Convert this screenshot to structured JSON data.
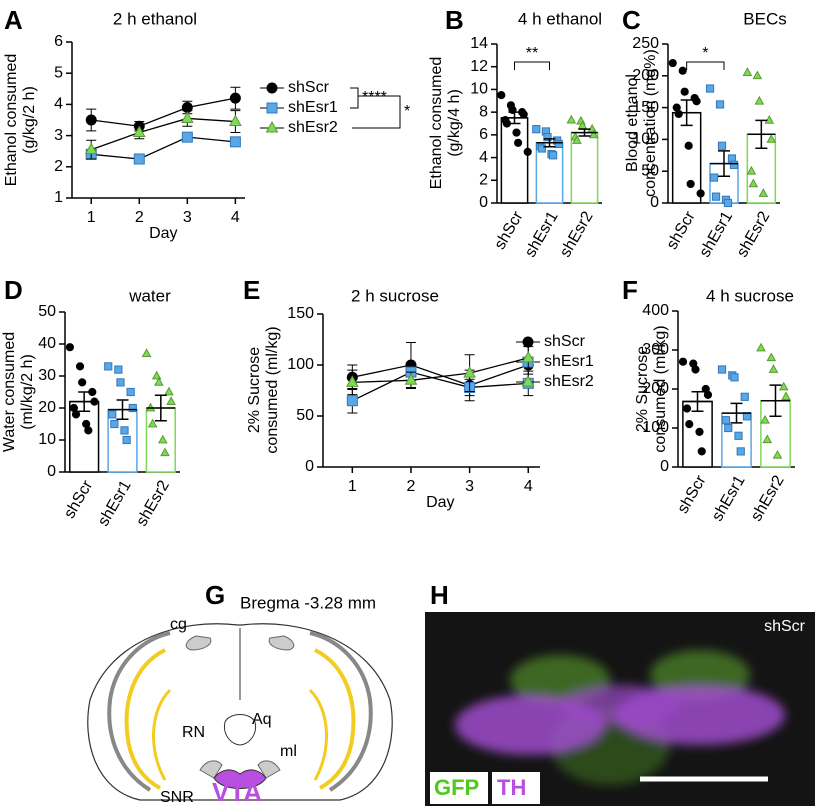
{
  "chart_data": [
    {
      "panel": "A",
      "type": "line",
      "title": "2 h ethanol",
      "ylabel": [
        "Ethanol consumed",
        "(g/kg/2 h)"
      ],
      "xlabel": "Day",
      "x": [
        1,
        2,
        3,
        4
      ],
      "xlim": [
        0.6,
        4.2
      ],
      "xticks": [
        1,
        2,
        3,
        4
      ],
      "ylim": [
        1,
        6
      ],
      "yticks": [
        1,
        2,
        3,
        4,
        5,
        6
      ],
      "series": [
        {
          "name": "shScr",
          "color": "#000000",
          "marker": "circle",
          "values": [
            3.5,
            3.3,
            3.9,
            4.2
          ],
          "errors": [
            0.35,
            0.15,
            0.2,
            0.35
          ]
        },
        {
          "name": "shEsr1",
          "color": "#5aa7e6",
          "marker": "square",
          "values": [
            2.4,
            2.25,
            2.95,
            2.8
          ],
          "errors": [
            0.15,
            0.1,
            0.15,
            0.1
          ]
        },
        {
          "name": "shEsr2",
          "color": "#7ed957",
          "marker": "triangle",
          "values": [
            2.55,
            3.1,
            3.55,
            3.45
          ],
          "errors": [
            0.3,
            0.2,
            0.25,
            0.35
          ]
        }
      ],
      "annotations": [
        "****",
        "*"
      ]
    },
    {
      "panel": "B",
      "type": "bar",
      "title": "4 h ethanol",
      "ylabel": [
        "Ethanol consumed",
        "(g/kg/4 h)"
      ],
      "categories": [
        "shScr",
        "shEsr1",
        "shEsr2"
      ],
      "colors": [
        "#000000",
        "#5aa7e6",
        "#7ed957"
      ],
      "markers": [
        "circle",
        "square",
        "triangle"
      ],
      "values": [
        7.5,
        5.3,
        6.2
      ],
      "errors": [
        0.5,
        0.35,
        0.3
      ],
      "points": [
        [
          9.5,
          8.6,
          8.2,
          8.0,
          7.8,
          7.3,
          7.0,
          6.2,
          5.3,
          4.5
        ],
        [
          6.5,
          6.3,
          5.8,
          5.5,
          5.2,
          5.0,
          4.8,
          4.3,
          4.2
        ],
        [
          7.3,
          7.2,
          6.8,
          6.5,
          6.0,
          5.8,
          5.5
        ]
      ],
      "ylim": [
        0,
        14
      ],
      "yticks": [
        0,
        2,
        4,
        6,
        8,
        10,
        12,
        14
      ],
      "annotations": [
        "**"
      ]
    },
    {
      "panel": "C",
      "type": "bar",
      "title": "BECs",
      "ylabel": [
        "Blood ethanol",
        "concentration (mg%)"
      ],
      "categories": [
        "shScr",
        "shEsr1",
        "shEsr2"
      ],
      "colors": [
        "#000000",
        "#5aa7e6",
        "#7ed957"
      ],
      "markers": [
        "circle",
        "square",
        "triangle"
      ],
      "values": [
        142,
        62,
        108
      ],
      "errors": [
        20,
        20,
        22
      ],
      "points": [
        [
          220,
          208,
          175,
          165,
          160,
          150,
          140,
          90,
          30,
          15
        ],
        [
          180,
          155,
          90,
          70,
          60,
          40,
          10,
          5,
          0
        ],
        [
          205,
          200,
          160,
          130,
          100,
          50,
          30,
          15
        ]
      ],
      "ylim": [
        0,
        250
      ],
      "yticks": [
        0,
        50,
        100,
        150,
        200,
        250
      ],
      "annotations": [
        "*"
      ]
    },
    {
      "panel": "D",
      "type": "bar",
      "title": "water",
      "ylabel": [
        "Water consumed",
        "(ml/kg/2 h)"
      ],
      "categories": [
        "shScr",
        "shEsr1",
        "shEsr2"
      ],
      "colors": [
        "#000000",
        "#5aa7e6",
        "#7ed957"
      ],
      "markers": [
        "circle",
        "square",
        "triangle"
      ],
      "values": [
        22,
        19.5,
        20
      ],
      "errors": [
        3,
        3,
        4
      ],
      "points": [
        [
          39,
          33,
          28,
          25,
          22,
          20,
          18,
          15,
          13
        ],
        [
          33,
          32,
          28,
          25,
          20,
          18,
          15,
          13,
          10
        ],
        [
          37,
          30,
          28,
          25,
          22,
          20,
          15,
          10,
          6
        ]
      ],
      "ylim": [
        0,
        50
      ],
      "yticks": [
        0,
        10,
        20,
        30,
        40,
        50
      ]
    },
    {
      "panel": "E",
      "type": "line",
      "title": "2 h sucrose",
      "ylabel": [
        "2% Sucrose",
        "consumed (ml/kg)"
      ],
      "xlabel": "Day",
      "x": [
        1,
        2,
        3,
        4
      ],
      "xlim": [
        0.5,
        4.2
      ],
      "xticks": [
        1,
        2,
        3,
        4
      ],
      "ylim": [
        0,
        150
      ],
      "yticks": [
        0,
        50,
        100,
        150
      ],
      "series": [
        {
          "name": "shScr",
          "color": "#000000",
          "marker": "circle",
          "values": [
            88,
            100,
            80,
            100
          ],
          "errors": [
            12,
            22,
            15,
            18
          ]
        },
        {
          "name": "shEsr1",
          "color": "#5aa7e6",
          "marker": "square",
          "values": [
            65,
            93,
            78,
            82
          ],
          "errors": [
            12,
            8,
            8,
            12
          ]
        },
        {
          "name": "shEsr2",
          "color": "#7ed957",
          "marker": "triangle",
          "values": [
            83,
            85,
            92,
            107
          ],
          "errors": [
            12,
            8,
            18,
            16
          ]
        }
      ]
    },
    {
      "panel": "F",
      "type": "bar",
      "title": "4 h sucrose",
      "ylabel": [
        "2% Sucrose",
        "consumed (ml/kg)"
      ],
      "categories": [
        "shScr",
        "shEsr1",
        "shEsr2"
      ],
      "colors": [
        "#000000",
        "#5aa7e6",
        "#7ed957"
      ],
      "markers": [
        "circle",
        "square",
        "triangle"
      ],
      "values": [
        168,
        138,
        170
      ],
      "errors": [
        25,
        25,
        40
      ],
      "points": [
        [
          270,
          265,
          250,
          200,
          185,
          150,
          110,
          90,
          40
        ],
        [
          250,
          235,
          230,
          180,
          130,
          120,
          100,
          80,
          40
        ],
        [
          305,
          280,
          250,
          205,
          180,
          120,
          70,
          30
        ]
      ],
      "ylim": [
        0,
        400
      ],
      "yticks": [
        0,
        100,
        200,
        300,
        400
      ]
    }
  ],
  "diagram": {
    "panel": "G",
    "title": "Bregma -3.28 mm",
    "labels": [
      "cg",
      "RN",
      "Aq",
      "ml",
      "SNR",
      "VTA"
    ]
  },
  "image": {
    "panel": "H",
    "label": "shScr",
    "stains": [
      "GFP",
      "TH"
    ]
  }
}
